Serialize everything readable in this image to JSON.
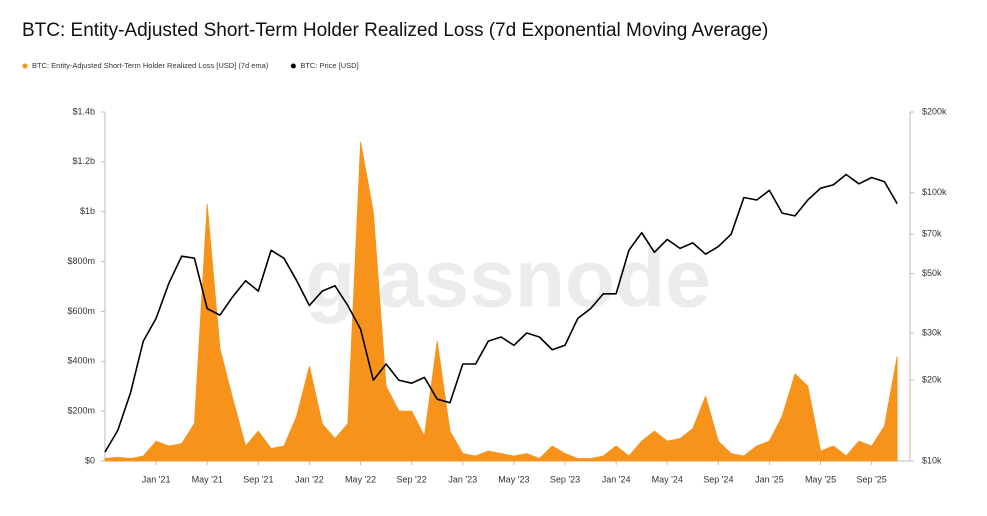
{
  "chart_data": {
    "type": "line",
    "title": "BTC: Entity-Adjusted Short-Term Holder Realized Loss (7d Exponential Moving Average)",
    "watermark": "glassnode",
    "x": [
      "2020-09",
      "2020-10",
      "2020-11",
      "2020-12",
      "2021-01",
      "2021-02",
      "2021-03",
      "2021-04",
      "2021-05",
      "2021-06",
      "2021-07",
      "2021-08",
      "2021-09",
      "2021-10",
      "2021-11",
      "2021-12",
      "2022-01",
      "2022-02",
      "2022-03",
      "2022-04",
      "2022-05",
      "2022-06",
      "2022-07",
      "2022-08",
      "2022-09",
      "2022-10",
      "2022-11",
      "2022-12",
      "2023-01",
      "2023-02",
      "2023-03",
      "2023-04",
      "2023-05",
      "2023-06",
      "2023-07",
      "2023-08",
      "2023-09",
      "2023-10",
      "2023-11",
      "2023-12",
      "2024-01",
      "2024-02",
      "2024-03",
      "2024-04",
      "2024-05",
      "2024-06",
      "2024-07",
      "2024-08",
      "2024-09",
      "2024-10",
      "2024-11",
      "2024-12",
      "2025-01",
      "2025-02",
      "2025-03",
      "2025-04",
      "2025-05",
      "2025-06",
      "2025-07",
      "2025-08",
      "2025-09",
      "2025-10",
      "2025-11"
    ],
    "xlim": [
      "2020-09",
      "2025-12"
    ],
    "xticks": [
      {
        "value": "2021-01",
        "label": "Jan '21"
      },
      {
        "value": "2021-05",
        "label": "May '21"
      },
      {
        "value": "2021-09",
        "label": "Sep '21"
      },
      {
        "value": "2022-01",
        "label": "Jan '22"
      },
      {
        "value": "2022-05",
        "label": "May '22"
      },
      {
        "value": "2022-09",
        "label": "Sep '22"
      },
      {
        "value": "2023-01",
        "label": "Jan '23"
      },
      {
        "value": "2023-05",
        "label": "May '23"
      },
      {
        "value": "2023-09",
        "label": "Sep '23"
      },
      {
        "value": "2024-01",
        "label": "Jan '24"
      },
      {
        "value": "2024-05",
        "label": "May '24"
      },
      {
        "value": "2024-09",
        "label": "Sep '24"
      },
      {
        "value": "2025-01",
        "label": "Jan '25"
      },
      {
        "value": "2025-05",
        "label": "May '25"
      },
      {
        "value": "2025-09",
        "label": "Sep '25"
      }
    ],
    "ylim": [
      0,
      1400000000
    ],
    "yticks": [
      {
        "value": 0,
        "label": "$0"
      },
      {
        "value": 200000000,
        "label": "$200m"
      },
      {
        "value": 400000000,
        "label": "$400m"
      },
      {
        "value": 600000000,
        "label": "$600m"
      },
      {
        "value": 800000000,
        "label": "$800m"
      },
      {
        "value": 1000000000,
        "label": "$1b"
      },
      {
        "value": 1200000000,
        "label": "$1.2b"
      },
      {
        "value": 1400000000,
        "label": "$1.4b"
      }
    ],
    "y2lim": [
      10000,
      200000
    ],
    "y2log": true,
    "y2ticks": [
      {
        "value": 10000,
        "label": "$10k"
      },
      {
        "value": 20000,
        "label": "$20k"
      },
      {
        "value": 30000,
        "label": "$30k"
      },
      {
        "value": 50000,
        "label": "$50k"
      },
      {
        "value": 70000,
        "label": "$70k"
      },
      {
        "value": 100000,
        "label": "$100k"
      },
      {
        "value": 200000,
        "label": "$200k"
      }
    ],
    "series": [
      {
        "name": "BTC: Entity-Adjusted Short-Term Holder Realized Loss [USD] (7d ema)",
        "color": "#f7931a",
        "fill": true,
        "values": [
          10000000,
          15000000,
          10000000,
          20000000,
          80000000,
          60000000,
          70000000,
          150000000,
          1030000000,
          450000000,
          250000000,
          60000000,
          120000000,
          50000000,
          60000000,
          180000000,
          380000000,
          150000000,
          90000000,
          150000000,
          1280000000,
          1000000000,
          300000000,
          200000000,
          200000000,
          100000000,
          480000000,
          120000000,
          30000000,
          20000000,
          40000000,
          30000000,
          20000000,
          30000000,
          10000000,
          60000000,
          30000000,
          10000000,
          10000000,
          20000000,
          60000000,
          20000000,
          80000000,
          120000000,
          80000000,
          90000000,
          130000000,
          260000000,
          80000000,
          30000000,
          20000000,
          60000000,
          80000000,
          180000000,
          350000000,
          300000000,
          40000000,
          60000000,
          20000000,
          80000000,
          60000000,
          140000000,
          420000000
        ]
      },
      {
        "name": "BTC: Price [USD]",
        "color": "#000000",
        "axis": "y2",
        "values": [
          10800,
          13000,
          18000,
          28000,
          34000,
          46000,
          58000,
          57000,
          37000,
          35000,
          41000,
          47000,
          43000,
          61000,
          57000,
          47000,
          38000,
          43000,
          45000,
          38000,
          31000,
          20000,
          23000,
          20000,
          19500,
          20500,
          17000,
          16500,
          23000,
          23000,
          28000,
          29000,
          27000,
          30000,
          29000,
          26000,
          27000,
          34000,
          37000,
          42000,
          42000,
          61000,
          71000,
          60000,
          67000,
          62000,
          65000,
          59000,
          63000,
          70000,
          96000,
          94000,
          102000,
          84000,
          82000,
          94000,
          104000,
          107000,
          117000,
          108000,
          114000,
          110000,
          91000
        ]
      }
    ]
  }
}
